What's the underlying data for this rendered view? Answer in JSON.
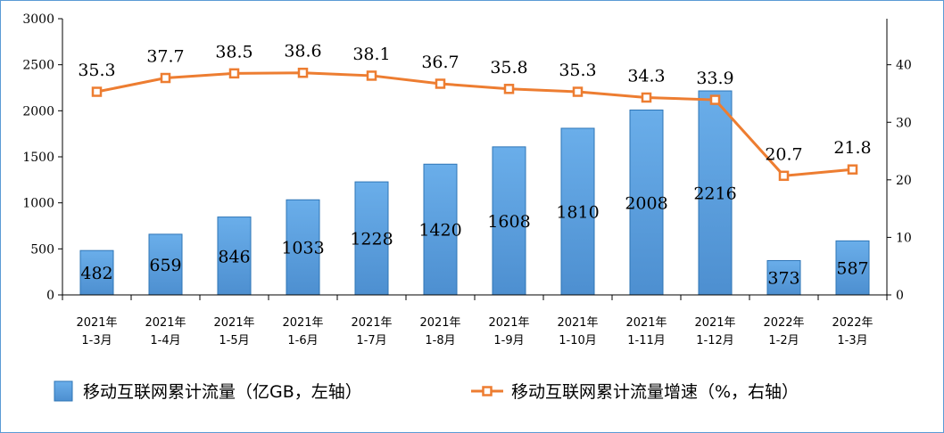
{
  "chart_data": {
    "type": "bar+line",
    "categories": [
      [
        "2021年",
        "1-3月"
      ],
      [
        "2021年",
        "1-4月"
      ],
      [
        "2021年",
        "1-5月"
      ],
      [
        "2021年",
        "1-6月"
      ],
      [
        "2021年",
        "1-7月"
      ],
      [
        "2021年",
        "1-8月"
      ],
      [
        "2021年",
        "1-9月"
      ],
      [
        "2021年",
        "1-10月"
      ],
      [
        "2021年",
        "1-11月"
      ],
      [
        "2021年",
        "1-12月"
      ],
      [
        "2022年",
        "1-2月"
      ],
      [
        "2022年",
        "1-3月"
      ]
    ],
    "series": [
      {
        "name": "移动互联网累计流量（亿GB，左轴）",
        "kind": "bar",
        "axis": "left",
        "values": [
          482,
          659,
          846,
          1033,
          1228,
          1420,
          1608,
          1810,
          2008,
          2216,
          373,
          587
        ]
      },
      {
        "name": "移动互联网累计流量增速（%，右轴）",
        "kind": "line",
        "axis": "right",
        "values": [
          35.3,
          37.7,
          38.5,
          38.6,
          38.1,
          36.7,
          35.8,
          35.3,
          34.3,
          33.9,
          20.7,
          21.8
        ]
      }
    ],
    "y_left": {
      "range": [
        0,
        3000
      ],
      "ticks": [
        "0",
        "500",
        "1000",
        "1500",
        "2000",
        "2500",
        "3000"
      ]
    },
    "y_right": {
      "range": [
        0,
        48
      ],
      "ticks": [
        "0",
        "10",
        "20",
        "30",
        "40"
      ]
    },
    "legend_position": "bottom",
    "grid": false,
    "colors": {
      "bar": "#5b9bd5",
      "bar_border": "#2e75b6",
      "line": "#ed7d31",
      "axis": "#000000"
    }
  }
}
